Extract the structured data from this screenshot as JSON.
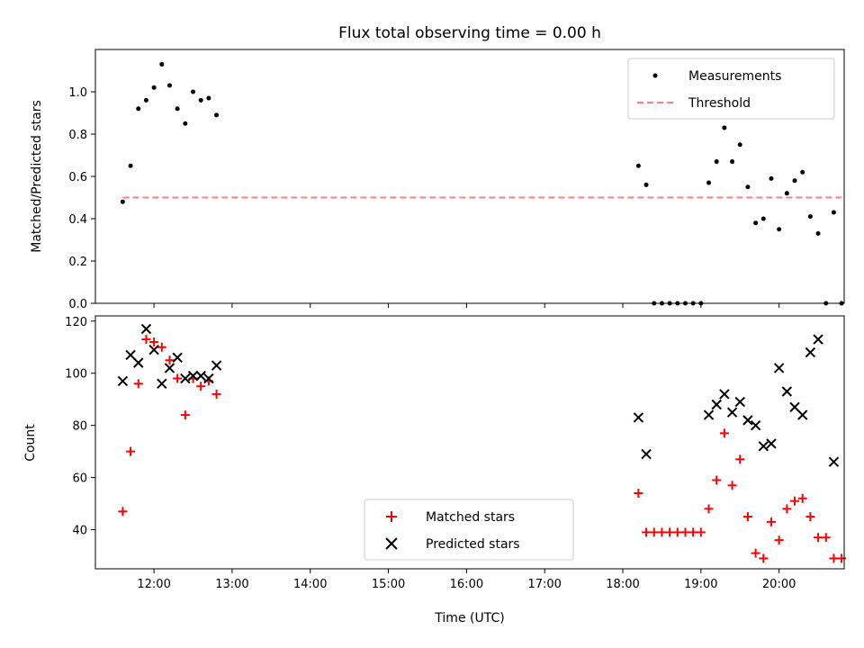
{
  "title": "Flux total observing time = 0.00 h",
  "colors": {
    "measurement": "#000000",
    "threshold": "#ff7f7f",
    "matched": "#ff0000",
    "predicted": "#000000"
  },
  "chart_data": [
    {
      "type": "scatter",
      "panel": "top",
      "xlabel": "",
      "ylabel": "Matched/Predicted stars",
      "xlim": [
        "11:15",
        "20:50"
      ],
      "ylim": [
        0,
        1.2
      ],
      "yticks": [
        "0.0",
        "0.2",
        "0.4",
        "0.6",
        "0.8",
        "1.0"
      ],
      "grid": false,
      "legend_position": "upper right",
      "legend": [
        "Measurements",
        "Threshold"
      ],
      "series": [
        {
          "name": "Measurements",
          "marker": "dot",
          "points": [
            [
              "11:36",
              0.48
            ],
            [
              "11:42",
              0.65
            ],
            [
              "11:48",
              0.92
            ],
            [
              "11:54",
              0.96
            ],
            [
              "12:00",
              1.02
            ],
            [
              "12:06",
              1.13
            ],
            [
              "12:12",
              1.03
            ],
            [
              "12:18",
              0.92
            ],
            [
              "12:24",
              0.85
            ],
            [
              "12:30",
              1.0
            ],
            [
              "12:36",
              0.96
            ],
            [
              "12:42",
              0.97
            ],
            [
              "12:48",
              0.89
            ],
            [
              "18:12",
              0.65
            ],
            [
              "18:18",
              0.56
            ],
            [
              "18:24",
              0.0
            ],
            [
              "18:30",
              0.0
            ],
            [
              "18:36",
              0.0
            ],
            [
              "18:42",
              0.0
            ],
            [
              "18:48",
              0.0
            ],
            [
              "18:54",
              0.0
            ],
            [
              "19:00",
              0.0
            ],
            [
              "19:06",
              0.57
            ],
            [
              "19:12",
              0.67
            ],
            [
              "19:18",
              0.83
            ],
            [
              "19:24",
              0.67
            ],
            [
              "19:30",
              0.75
            ],
            [
              "19:36",
              0.55
            ],
            [
              "19:42",
              0.38
            ],
            [
              "19:48",
              0.4
            ],
            [
              "19:54",
              0.59
            ],
            [
              "20:00",
              0.35
            ],
            [
              "20:06",
              0.52
            ],
            [
              "20:12",
              0.58
            ],
            [
              "20:18",
              0.62
            ],
            [
              "20:24",
              0.41
            ],
            [
              "20:30",
              0.33
            ],
            [
              "20:36",
              0.0
            ],
            [
              "20:42",
              0.43
            ],
            [
              "20:48",
              0.0
            ]
          ]
        },
        {
          "name": "Threshold",
          "marker": "dashed-line",
          "points": [
            [
              "11:36",
              0.5
            ],
            [
              "20:48",
              0.5
            ]
          ]
        }
      ]
    },
    {
      "type": "scatter",
      "panel": "bottom",
      "xlabel": "Time (UTC)",
      "ylabel": "Count",
      "xlim": [
        "11:15",
        "20:50"
      ],
      "ylim": [
        25,
        122
      ],
      "yticks": [
        "40",
        "60",
        "80",
        "100",
        "120"
      ],
      "xticks": [
        "12:00",
        "13:00",
        "14:00",
        "15:00",
        "16:00",
        "17:00",
        "18:00",
        "19:00",
        "20:00"
      ],
      "grid": false,
      "legend_position": "lower center",
      "legend": [
        "Matched stars",
        "Predicted stars"
      ],
      "series": [
        {
          "name": "Matched stars",
          "marker": "plus",
          "points": [
            [
              "11:36",
              47
            ],
            [
              "11:42",
              70
            ],
            [
              "11:48",
              96
            ],
            [
              "11:54",
              113
            ],
            [
              "12:00",
              112
            ],
            [
              "12:06",
              110
            ],
            [
              "12:12",
              105
            ],
            [
              "12:18",
              98
            ],
            [
              "12:24",
              84
            ],
            [
              "12:30",
              98
            ],
            [
              "12:36",
              95
            ],
            [
              "12:42",
              97
            ],
            [
              "12:48",
              92
            ],
            [
              "18:12",
              54
            ],
            [
              "18:18",
              39
            ],
            [
              "18:24",
              39
            ],
            [
              "18:30",
              39
            ],
            [
              "18:36",
              39
            ],
            [
              "18:42",
              39
            ],
            [
              "18:48",
              39
            ],
            [
              "18:54",
              39
            ],
            [
              "19:00",
              39
            ],
            [
              "19:06",
              48
            ],
            [
              "19:12",
              59
            ],
            [
              "19:18",
              77
            ],
            [
              "19:24",
              57
            ],
            [
              "19:30",
              67
            ],
            [
              "19:36",
              45
            ],
            [
              "19:42",
              31
            ],
            [
              "19:48",
              29
            ],
            [
              "19:54",
              43
            ],
            [
              "20:00",
              36
            ],
            [
              "20:06",
              48
            ],
            [
              "20:12",
              51
            ],
            [
              "20:18",
              52
            ],
            [
              "20:24",
              45
            ],
            [
              "20:30",
              37
            ],
            [
              "20:36",
              37
            ],
            [
              "20:42",
              29
            ],
            [
              "20:48",
              29
            ]
          ]
        },
        {
          "name": "Predicted stars",
          "marker": "x",
          "points": [
            [
              "11:36",
              97
            ],
            [
              "11:42",
              107
            ],
            [
              "11:48",
              104
            ],
            [
              "11:54",
              117
            ],
            [
              "12:00",
              109
            ],
            [
              "12:06",
              96
            ],
            [
              "12:12",
              102
            ],
            [
              "12:18",
              106
            ],
            [
              "12:24",
              98
            ],
            [
              "12:30",
              99
            ],
            [
              "12:36",
              99
            ],
            [
              "12:42",
              98
            ],
            [
              "12:48",
              103
            ],
            [
              "18:12",
              83
            ],
            [
              "18:18",
              69
            ],
            [
              "19:06",
              84
            ],
            [
              "19:12",
              88
            ],
            [
              "19:18",
              92
            ],
            [
              "19:24",
              85
            ],
            [
              "19:30",
              89
            ],
            [
              "19:36",
              82
            ],
            [
              "19:42",
              80
            ],
            [
              "19:48",
              72
            ],
            [
              "19:54",
              73
            ],
            [
              "20:00",
              102
            ],
            [
              "20:06",
              93
            ],
            [
              "20:12",
              87
            ],
            [
              "20:18",
              84
            ],
            [
              "20:24",
              108
            ],
            [
              "20:30",
              113
            ],
            [
              "20:42",
              66
            ]
          ]
        }
      ]
    }
  ]
}
